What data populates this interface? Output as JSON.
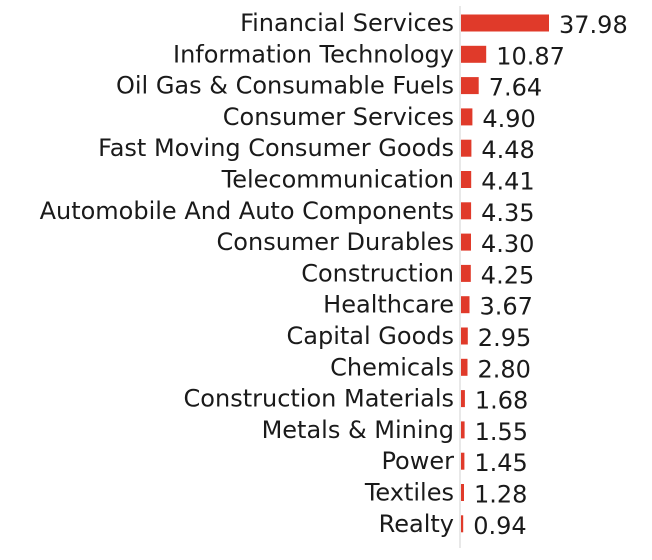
{
  "chart_data": {
    "type": "bar",
    "orientation": "horizontal",
    "title": "",
    "xlabel": "",
    "ylabel": "",
    "xlim": [
      0,
      37.98
    ],
    "grid": false,
    "legend": "none",
    "bar_color": "#e03a2a",
    "axis_color": "#d0d0d0",
    "text_color": "#1a1a1a",
    "categories": [
      "Financial Services",
      "Information Technology",
      "Oil Gas & Consumable Fuels",
      "Consumer Services",
      "Fast Moving Consumer Goods",
      "Telecommunication",
      "Automobile And Auto Components",
      "Consumer Durables",
      "Construction",
      "Healthcare",
      "Capital Goods",
      "Chemicals",
      "Construction Materials",
      "Metals & Mining",
      "Power",
      "Textiles",
      "Realty"
    ],
    "values": [
      37.98,
      10.87,
      7.64,
      4.9,
      4.48,
      4.41,
      4.35,
      4.3,
      4.25,
      3.67,
      2.95,
      2.8,
      1.68,
      1.55,
      1.45,
      1.28,
      0.94
    ],
    "value_labels": [
      "37.98",
      "10.87",
      "7.64",
      "4.90",
      "4.48",
      "4.41",
      "4.35",
      "4.30",
      "4.25",
      "3.67",
      "2.95",
      "2.80",
      "1.68",
      "1.55",
      "1.45",
      "1.28",
      "0.94"
    ]
  }
}
